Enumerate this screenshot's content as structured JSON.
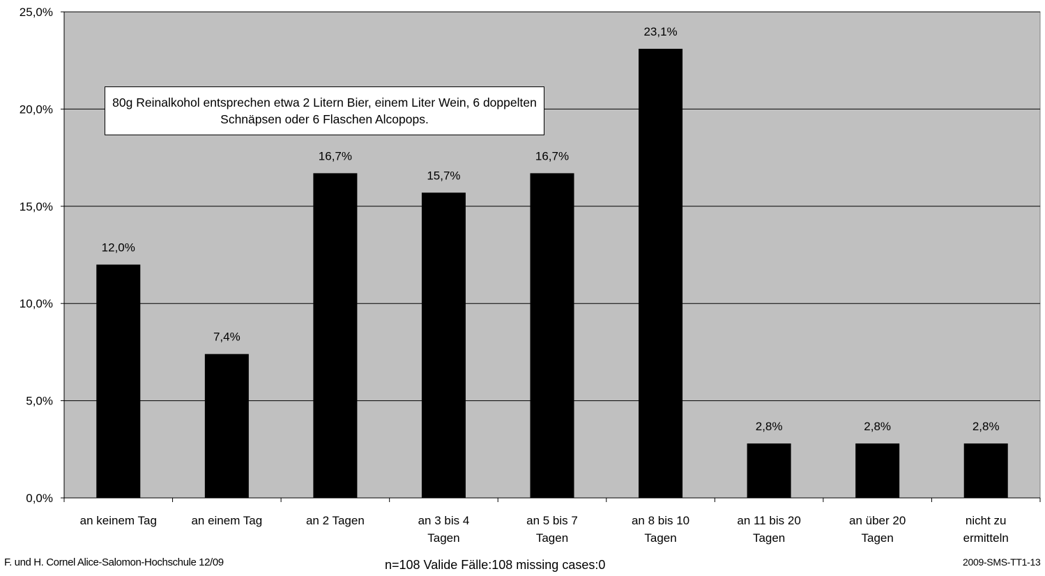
{
  "chart_data": {
    "type": "bar",
    "categories": [
      "an keinem Tag",
      "an einem Tag",
      "an 2 Tagen",
      "an 3 bis 4 Tagen",
      "an 5 bis 7 Tagen",
      "an 8 bis 10 Tagen",
      "an 11 bis 20 Tagen",
      "an über 20 Tagen",
      "nicht zu ermitteln"
    ],
    "category_lines": [
      [
        "an keinem Tag"
      ],
      [
        "an einem Tag"
      ],
      [
        "an 2 Tagen"
      ],
      [
        "an 3 bis 4",
        "Tagen"
      ],
      [
        "an 5 bis 7",
        "Tagen"
      ],
      [
        "an 8 bis 10",
        "Tagen"
      ],
      [
        "an 11 bis 20",
        "Tagen"
      ],
      [
        "an über 20",
        "Tagen"
      ],
      [
        "nicht zu",
        "ermitteln"
      ]
    ],
    "values": [
      12.0,
      7.4,
      16.7,
      15.7,
      16.7,
      23.1,
      2.8,
      2.8,
      2.8
    ],
    "data_labels": [
      "12,0%",
      "7,4%",
      "16,7%",
      "15,7%",
      "16,7%",
      "23,1%",
      "2,8%",
      "2,8%",
      "2,8%"
    ],
    "yticks": [
      0,
      5,
      10,
      15,
      20,
      25
    ],
    "ytick_labels": [
      "0,0%",
      "5,0%",
      "10,0%",
      "15,0%",
      "20,0%",
      "25,0%"
    ],
    "ylim": [
      0,
      25
    ],
    "grid": true,
    "title": "",
    "xlabel": "",
    "ylabel": "",
    "annotation": "80g Reinalkohol entsprechen etwa 2 Litern Bier, einem Liter Wein, 6 doppelten Schnäpsen oder 6 Flaschen Alcopops.",
    "colors": {
      "plot_background": "#c0c0c0",
      "bar": "#000000",
      "grid": "#000000"
    }
  },
  "footer": {
    "left": "F. und H. Cornel Alice-Salomon-Hochschule 12/09",
    "center": "n=108    Valide Fälle:108    missing cases:0",
    "right": "2009-SMS-TT1-13"
  }
}
